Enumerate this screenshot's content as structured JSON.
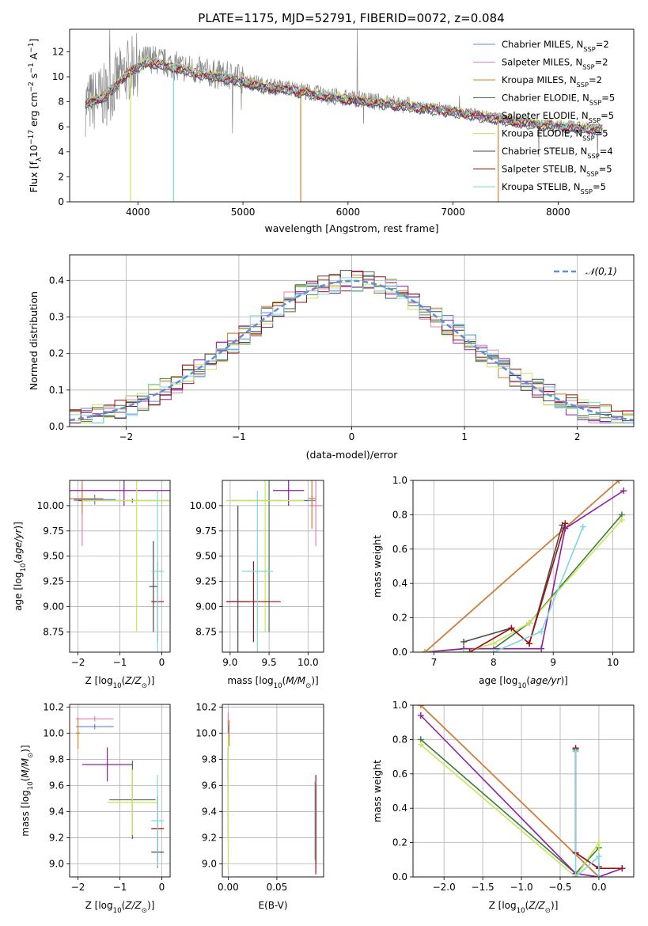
{
  "colors": {
    "chabrier_miles": "#5f83d8",
    "salpeter_miles": "#e57fb4",
    "kroupa_miles": "#d2812c",
    "chabrier_elodie": "#3d7a3d",
    "salpeter_elodie": "#8e1fa3",
    "kroupa_elodie": "#c8e65a",
    "chabrier_stelib": "#4a4a4a",
    "salpeter_stelib": "#9b1010",
    "kroupa_stelib": "#7fd6de",
    "data_spectrum": "#888888",
    "normal_curve": "#5b8fd6"
  },
  "models": [
    {
      "key": "chabrier_miles",
      "base": "Chabrier MILES, N",
      "sub": "SSP",
      "tail": "=2"
    },
    {
      "key": "salpeter_miles",
      "base": "Salpeter MILES, N",
      "sub": "SSP",
      "tail": "=2"
    },
    {
      "key": "kroupa_miles",
      "base": "Kroupa MILES, N",
      "sub": "SSP",
      "tail": "=2"
    },
    {
      "key": "chabrier_elodie",
      "base": "Chabrier ELODIE, N",
      "sub": "SSP",
      "tail": "=5"
    },
    {
      "key": "salpeter_elodie",
      "base": "Salpeter ELODIE, N",
      "sub": "SSP",
      "tail": "=5"
    },
    {
      "key": "kroupa_elodie",
      "base": "Kroupa ELODIE, N",
      "sub": "SSP",
      "tail": "=5"
    },
    {
      "key": "chabrier_stelib",
      "base": "Chabrier STELIB, N",
      "sub": "SSP",
      "tail": "=4"
    },
    {
      "key": "salpeter_stelib",
      "base": "Salpeter STELIB, N",
      "sub": "SSP",
      "tail": "=5"
    },
    {
      "key": "kroupa_stelib",
      "base": "Kroupa STELIB, N",
      "sub": "SSP",
      "tail": "=5"
    }
  ],
  "chart_data": [
    {
      "id": "spectrum",
      "type": "line",
      "title": "PLATE=1175, MJD=52791, FIBERID=0072, z=0.084",
      "xlabel": "wavelength [Angstrom, rest frame]",
      "ylabel": "Flux [f_λ 10^-17 erg cm^-2 s^-1 A^-1]",
      "xlim": [
        3350,
        8720
      ],
      "ylim": [
        0,
        13.8
      ],
      "xticks": [
        4000,
        5000,
        6000,
        7000,
        8000
      ],
      "yticks": [
        0,
        2,
        4,
        6,
        8,
        10,
        12
      ],
      "legend": "top-right",
      "data_continuum": [
        [
          3500,
          7.8
        ],
        [
          3700,
          8.6
        ],
        [
          3900,
          10.5
        ],
        [
          4100,
          11.5
        ],
        [
          4300,
          11.0
        ],
        [
          4600,
          10.4
        ],
        [
          4900,
          10.0
        ],
        [
          5200,
          9.3
        ],
        [
          5500,
          9.0
        ],
        [
          5800,
          8.5
        ],
        [
          6100,
          8.2
        ],
        [
          6400,
          7.9
        ],
        [
          6700,
          7.6
        ],
        [
          7000,
          7.3
        ],
        [
          7300,
          6.9
        ],
        [
          7600,
          6.5
        ],
        [
          7900,
          6.2
        ],
        [
          8200,
          6.0
        ],
        [
          8400,
          5.9
        ]
      ],
      "model_continuum": [
        [
          3500,
          7.8
        ],
        [
          3700,
          8.5
        ],
        [
          3900,
          10.3
        ],
        [
          4100,
          11.2
        ],
        [
          4300,
          10.8
        ],
        [
          4600,
          10.2
        ],
        [
          4900,
          9.8
        ],
        [
          5200,
          9.2
        ],
        [
          5500,
          8.9
        ],
        [
          5800,
          8.4
        ],
        [
          6100,
          8.1
        ],
        [
          6400,
          7.8
        ],
        [
          6700,
          7.5
        ],
        [
          7000,
          7.2
        ],
        [
          7300,
          6.8
        ],
        [
          7600,
          6.4
        ],
        [
          7900,
          6.1
        ],
        [
          8200,
          5.9
        ],
        [
          8400,
          5.8
        ]
      ]
    },
    {
      "id": "residuals",
      "type": "line",
      "xlabel": "(data-model)/error",
      "ylabel": "Normed distribution",
      "xlim": [
        -2.5,
        2.5
      ],
      "ylim": [
        0,
        0.47
      ],
      "xticks": [
        -2,
        -1,
        0,
        1,
        2
      ],
      "yticks": [
        0.0,
        0.1,
        0.2,
        0.3,
        0.4
      ],
      "grid": true,
      "legend": "top-right",
      "series": [
        {
          "name": "𝒩(0,1)",
          "mean": 0,
          "sigma": 1
        }
      ]
    },
    {
      "id": "age_vs_z",
      "type": "scatter",
      "xlabel": "Z [log10(Z/Z⊙)]",
      "ylabel": "age  [log10(age/yr)]",
      "xlim": [
        -2.2,
        0.2
      ],
      "ylim": [
        8.55,
        10.25
      ],
      "xticks": [
        -2,
        -1,
        0
      ],
      "yticks": [
        8.75,
        9.0,
        9.25,
        9.5,
        9.75,
        10.0
      ],
      "grid": true,
      "points": [
        {
          "key": "chabrier_miles",
          "x": -1.6,
          "xerr": 0.5,
          "y": 10.06,
          "yerr": 0.05
        },
        {
          "key": "salpeter_miles",
          "x": -1.9,
          "xerr": 0.2,
          "y": 10.05,
          "yerr": 0.45
        },
        {
          "key": "kroupa_miles",
          "x": -1.9,
          "xerr": 0.5,
          "y": 10.07,
          "yerr": 0.15
        },
        {
          "key": "chabrier_elodie",
          "x": -0.7,
          "xerr": 1.3,
          "y": 10.05,
          "yerr": 0.02
        },
        {
          "key": "salpeter_elodie",
          "x": -0.9,
          "xerr": 1.3,
          "y": 10.15,
          "yerr": 0.15
        },
        {
          "key": "kroupa_elodie",
          "x": -0.6,
          "xerr": 1.3,
          "y": 10.05,
          "yerr": 1.3
        },
        {
          "key": "chabrier_stelib",
          "x": -0.2,
          "xerr": 0.1,
          "y": 9.2,
          "yerr": 0.45
        },
        {
          "key": "salpeter_stelib",
          "x": -0.1,
          "xerr": 0.15,
          "y": 9.05,
          "yerr": 0.4
        },
        {
          "key": "kroupa_stelib",
          "x": -0.1,
          "xerr": 0.15,
          "y": 9.35,
          "yerr": 0.8
        }
      ]
    },
    {
      "id": "age_vs_mass",
      "type": "scatter",
      "xlabel": "mass [log10(M/M⊙)]",
      "ylabel": "",
      "xlim": [
        8.9,
        10.2
      ],
      "ylim": [
        8.55,
        10.25
      ],
      "xticks": [
        9.0,
        9.5,
        10.0
      ],
      "yticks": [
        8.75,
        9.0,
        9.25,
        9.5,
        9.75,
        10.0
      ],
      "grid": true,
      "points": [
        {
          "key": "chabrier_miles",
          "x": 10.05,
          "xerr": 0.05,
          "y": 10.05,
          "yerr": 0.05
        },
        {
          "key": "salpeter_miles",
          "x": 10.1,
          "xerr": 0.08,
          "y": 10.0,
          "yerr": 0.4
        },
        {
          "key": "kroupa_miles",
          "x": 10.05,
          "xerr": 0.05,
          "y": 10.07,
          "yerr": 0.3
        },
        {
          "key": "chabrier_elodie",
          "x": 9.5,
          "xerr": 0.5,
          "y": 10.05,
          "yerr": 1.3
        },
        {
          "key": "salpeter_elodie",
          "x": 9.75,
          "xerr": 0.2,
          "y": 10.15,
          "yerr": 0.15
        },
        {
          "key": "kroupa_elodie",
          "x": 9.45,
          "xerr": 0.5,
          "y": 10.05,
          "yerr": 1.3
        },
        {
          "key": "chabrier_stelib",
          "x": 9.1,
          "xerr": 0.15,
          "y": 9.05,
          "yerr": 0.95
        },
        {
          "key": "salpeter_stelib",
          "x": 9.3,
          "xerr": 0.35,
          "y": 9.05,
          "yerr": 0.4
        },
        {
          "key": "kroupa_stelib",
          "x": 9.35,
          "xerr": 0.2,
          "y": 9.35,
          "yerr": 0.8
        }
      ]
    },
    {
      "id": "weight_vs_age",
      "type": "line",
      "xlabel": "age  [log10(age/yr)]",
      "ylabel": "mass weight",
      "xlim": [
        6.65,
        10.35
      ],
      "ylim": [
        0,
        1.0
      ],
      "xticks": [
        7,
        8,
        9,
        10
      ],
      "yticks": [
        0.0,
        0.2,
        0.4,
        0.6,
        0.8,
        1.0
      ],
      "grid": true,
      "series": [
        {
          "key": "chabrier_miles",
          "points": [
            [
              6.85,
              0.0
            ],
            [
              10.1,
              1.0
            ]
          ]
        },
        {
          "key": "salpeter_miles",
          "points": [
            [
              6.85,
              0.0
            ],
            [
              10.1,
              1.0
            ]
          ]
        },
        {
          "key": "kroupa_miles",
          "points": [
            [
              6.85,
              0.0
            ],
            [
              10.1,
              1.0
            ]
          ]
        },
        {
          "key": "chabrier_elodie",
          "points": [
            [
              6.85,
              0.0
            ],
            [
              7.5,
              0.02
            ],
            [
              8.0,
              0.02
            ],
            [
              8.6,
              0.17
            ],
            [
              10.15,
              0.8
            ]
          ]
        },
        {
          "key": "salpeter_elodie",
          "points": [
            [
              6.85,
              0.0
            ],
            [
              7.5,
              0.02
            ],
            [
              8.8,
              0.02
            ],
            [
              9.2,
              0.72
            ],
            [
              10.18,
              0.94
            ]
          ]
        },
        {
          "key": "kroupa_elodie",
          "points": [
            [
              6.85,
              0.0
            ],
            [
              7.5,
              0.0
            ],
            [
              8.0,
              0.05
            ],
            [
              8.6,
              0.17
            ],
            [
              10.15,
              0.77
            ]
          ]
        },
        {
          "key": "chabrier_stelib",
          "points": [
            [
              7.5,
              0.06
            ],
            [
              8.3,
              0.14
            ],
            [
              8.6,
              0.05
            ],
            [
              9.15,
              0.74
            ]
          ]
        },
        {
          "key": "salpeter_stelib",
          "points": [
            [
              7.6,
              0.0
            ],
            [
              8.3,
              0.14
            ],
            [
              8.6,
              0.05
            ],
            [
              9.2,
              0.75
            ]
          ]
        },
        {
          "key": "kroupa_stelib",
          "points": [
            [
              7.5,
              0.0
            ],
            [
              8.0,
              0.0
            ],
            [
              8.8,
              0.12
            ],
            [
              9.5,
              0.73
            ]
          ]
        }
      ]
    },
    {
      "id": "mass_vs_z",
      "type": "scatter",
      "xlabel": "Z [log10(Z/Z⊙)]",
      "ylabel": "mass [log10(M/M⊙)]",
      "xlim": [
        -2.2,
        0.2
      ],
      "ylim": [
        8.9,
        10.22
      ],
      "xticks": [
        -2,
        -1,
        0
      ],
      "yticks": [
        9.0,
        9.2,
        9.4,
        9.6,
        9.8,
        10.0,
        10.2
      ],
      "grid": true,
      "points": [
        {
          "key": "chabrier_miles",
          "x": -1.6,
          "xerr": 0.45,
          "y": 10.05,
          "yerr": 0.02
        },
        {
          "key": "salpeter_miles",
          "x": -1.6,
          "xerr": 0.45,
          "y": 10.11,
          "yerr": 0.02
        },
        {
          "key": "kroupa_miles",
          "x": -2.0,
          "xerr": 0.05,
          "y": 10.0,
          "yerr": 0.12
        },
        {
          "key": "chabrier_elodie",
          "x": -0.7,
          "xerr": 0.55,
          "y": 9.49,
          "yerr": 0.3
        },
        {
          "key": "salpeter_elodie",
          "x": -1.3,
          "xerr": 0.6,
          "y": 9.76,
          "yerr": 0.13
        },
        {
          "key": "kroupa_elodie",
          "x": -0.7,
          "xerr": 0.6,
          "y": 9.47,
          "yerr": 0.25
        },
        {
          "key": "chabrier_stelib",
          "x": -0.1,
          "xerr": 0.15,
          "y": 9.09,
          "yerr": 0.12
        },
        {
          "key": "salpeter_stelib",
          "x": -0.1,
          "xerr": 0.15,
          "y": 9.27,
          "yerr": 0.25
        },
        {
          "key": "kroupa_stelib",
          "x": -0.1,
          "xerr": 0.15,
          "y": 9.33,
          "yerr": 0.35
        }
      ]
    },
    {
      "id": "mass_vs_ebv",
      "type": "scatter",
      "xlabel": "E(B-V)",
      "ylabel": "",
      "xlim": [
        -0.006,
        0.098
      ],
      "ylim": [
        8.9,
        10.22
      ],
      "xticks": [
        0.0,
        0.05
      ],
      "yticks": [
        9.0,
        9.2,
        9.4,
        9.6,
        9.8,
        10.0,
        10.2
      ],
      "grid": true,
      "points": [
        {
          "key": "chabrier_miles",
          "x": 0.0,
          "xerr": 0.0,
          "y": 10.05,
          "yerr": 0.05
        },
        {
          "key": "salpeter_miles",
          "x": 0.0,
          "xerr": 0.0,
          "y": 10.11,
          "yerr": 0.05
        },
        {
          "key": "kroupa_miles",
          "x": 0.001,
          "xerr": 0.0,
          "y": 10.0,
          "yerr": 0.1
        },
        {
          "key": "chabrier_elodie",
          "x": 0.0,
          "xerr": 0.0,
          "y": 9.49,
          "yerr": 0.3
        },
        {
          "key": "salpeter_elodie",
          "x": 0.0,
          "xerr": 0.0,
          "y": 9.76,
          "yerr": 0.13
        },
        {
          "key": "kroupa_elodie",
          "x": 0.0,
          "xerr": 0.0,
          "y": 9.47,
          "yerr": 0.5
        },
        {
          "key": "chabrier_stelib",
          "x": 0.09,
          "xerr": 0.0,
          "y": 9.3,
          "yerr": 0.3
        },
        {
          "key": "salpeter_stelib",
          "x": 0.09,
          "xerr": 0.0,
          "y": 9.3,
          "yerr": 0.38
        },
        {
          "key": "kroupa_stelib",
          "x": 0.089,
          "xerr": 0.0,
          "y": 9.33,
          "yerr": 0.3
        }
      ]
    },
    {
      "id": "weight_vs_z",
      "type": "line",
      "xlabel": "Z [log10(Z/Z⊙)]",
      "ylabel": "mass weight",
      "xlim": [
        -2.4,
        0.45
      ],
      "ylim": [
        0,
        1.0
      ],
      "xticks": [
        -2.0,
        -1.5,
        -1.0,
        -0.5,
        0.0
      ],
      "yticks": [
        0.0,
        0.2,
        0.4,
        0.6,
        0.8,
        1.0
      ],
      "grid": true,
      "series": [
        {
          "key": "chabrier_miles",
          "points": [
            [
              -2.3,
              1.0
            ],
            [
              0.0,
              0.0
            ]
          ]
        },
        {
          "key": "salpeter_miles",
          "points": [
            [
              -2.3,
              1.0
            ],
            [
              0.0,
              0.0
            ]
          ]
        },
        {
          "key": "kroupa_miles",
          "points": [
            [
              -2.3,
              1.0
            ],
            [
              0.0,
              0.0
            ]
          ]
        },
        {
          "key": "chabrier_elodie",
          "points": [
            [
              -2.3,
              0.8
            ],
            [
              -0.3,
              0.02
            ],
            [
              0.0,
              0.17
            ]
          ]
        },
        {
          "key": "salpeter_elodie",
          "points": [
            [
              -2.3,
              0.94
            ],
            [
              -0.3,
              0.02
            ],
            [
              0.0,
              0.0
            ],
            [
              0.3,
              0.05
            ]
          ]
        },
        {
          "key": "kroupa_elodie",
          "points": [
            [
              -2.3,
              0.77
            ],
            [
              -0.3,
              0.0
            ],
            [
              0.0,
              0.2
            ],
            [
              0.0,
              0.05
            ]
          ]
        },
        {
          "key": "chabrier_stelib",
          "points": [
            [
              -0.3,
              0.74
            ],
            [
              -0.3,
              0.14
            ],
            [
              0.0,
              0.05
            ],
            [
              0.0,
              0.06
            ]
          ]
        },
        {
          "key": "salpeter_stelib",
          "points": [
            [
              -0.3,
              0.75
            ],
            [
              -0.3,
              0.14
            ],
            [
              0.0,
              0.05
            ],
            [
              0.3,
              0.05
            ]
          ]
        },
        {
          "key": "kroupa_stelib",
          "points": [
            [
              -0.3,
              0.73
            ],
            [
              -0.3,
              0.0
            ],
            [
              0.0,
              0.12
            ],
            [
              0.0,
              0.0
            ]
          ]
        }
      ]
    }
  ]
}
